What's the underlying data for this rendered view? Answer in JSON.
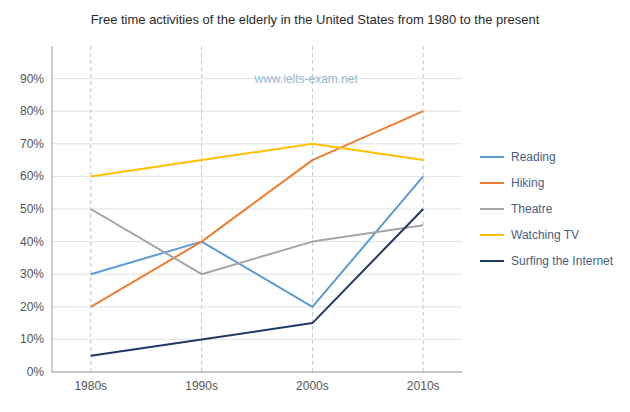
{
  "chart_data": {
    "type": "line",
    "title": "Free time activities of the elderly in the United States from 1980 to the present",
    "annotations": [
      "www.ielts-exam.net"
    ],
    "categories": [
      "1980s",
      "1990s",
      "2000s",
      "2010s"
    ],
    "series": [
      {
        "name": "Reading",
        "color": "#5B9BD5",
        "values": [
          30,
          40,
          20,
          60
        ]
      },
      {
        "name": "Hiking",
        "color": "#ED7D31",
        "values": [
          20,
          40,
          65,
          80
        ]
      },
      {
        "name": "Theatre",
        "color": "#A5A5A5",
        "values": [
          50,
          30,
          40,
          45
        ]
      },
      {
        "name": "Watching TV",
        "color": "#FFC000",
        "values": [
          60,
          65,
          70,
          65
        ]
      },
      {
        "name": "Surfing the Internet",
        "color": "#203864",
        "values": [
          5,
          10,
          15,
          50
        ]
      }
    ],
    "ylim": [
      0,
      100
    ],
    "yticks": [
      {
        "value": 0,
        "label": "0%"
      },
      {
        "value": 10,
        "label": "10%"
      },
      {
        "value": 20,
        "label": "20%"
      },
      {
        "value": 30,
        "label": "30%"
      },
      {
        "value": 40,
        "label": "40%"
      },
      {
        "value": 50,
        "label": "50%"
      },
      {
        "value": 60,
        "label": "60%"
      },
      {
        "value": 70,
        "label": "70%"
      },
      {
        "value": 80,
        "label": "80%"
      },
      {
        "value": 90,
        "label": "90%"
      }
    ],
    "grid": true,
    "legend": "right"
  }
}
